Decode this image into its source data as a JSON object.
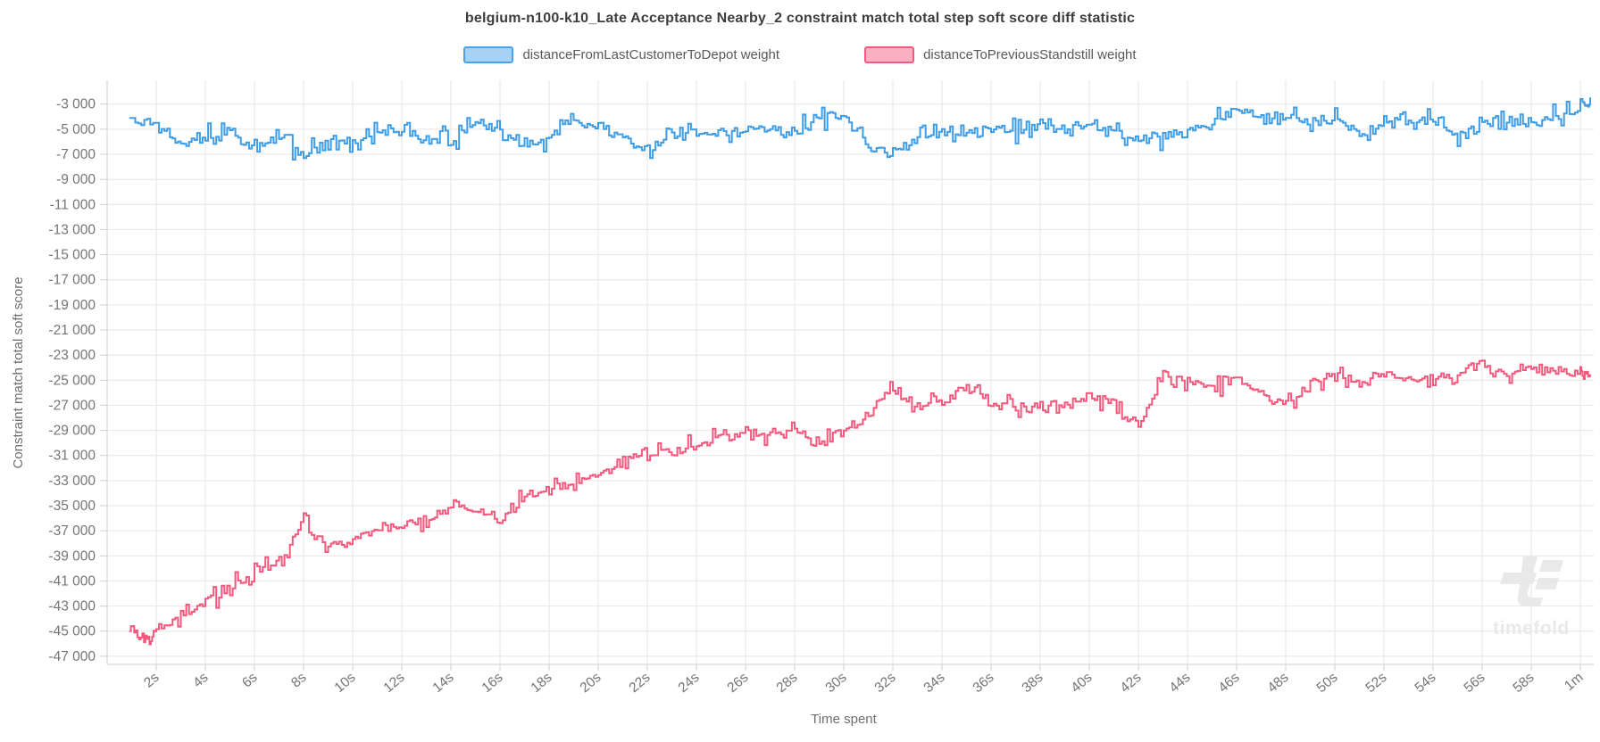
{
  "chart_title": "belgium-n100-k10_Late Acceptance Nearby_2 constraint match total step soft score diff statistic",
  "legend": {
    "items": [
      {
        "label": "distanceFromLastCustomerToDepot weight",
        "fill": "#a6d2f5",
        "border": "#4aa3ea"
      },
      {
        "label": "distanceToPreviousStandstill weight",
        "fill": "#f9b0c3",
        "border": "#f4587d"
      }
    ]
  },
  "axes": {
    "y_title": "Constraint match total soft score",
    "x_title": "Time spent"
  },
  "watermark": {
    "text": "timefold",
    "color": "#e9e9e9"
  },
  "colors": {
    "grid": "#e6e6e6",
    "axis": "#cfcfcf",
    "tick_label": "#757575",
    "series_blue": "#3e9de6",
    "series_pink": "#f4587d"
  },
  "chart_data": {
    "type": "line",
    "title": "belgium-n100-k10_Late Acceptance Nearby_2 constraint match total step soft score diff statistic",
    "xlabel": "Time spent",
    "ylabel": "Constraint match total soft score",
    "legend_position": "top",
    "grid": true,
    "xlim": [
      0,
      60
    ],
    "ylim": [
      -47650,
      -1100
    ],
    "x_tick_values": [
      2,
      4,
      6,
      8,
      10,
      12,
      14,
      16,
      18,
      20,
      22,
      24,
      26,
      28,
      30,
      32,
      34,
      36,
      38,
      40,
      42,
      44,
      46,
      48,
      50,
      52,
      54,
      56,
      58,
      60
    ],
    "x_tick_labels": [
      "2s",
      "4s",
      "6s",
      "8s",
      "10s",
      "12s",
      "14s",
      "16s",
      "18s",
      "20s",
      "22s",
      "24s",
      "26s",
      "28s",
      "30s",
      "32s",
      "34s",
      "36s",
      "38s",
      "40s",
      "42s",
      "44s",
      "46s",
      "48s",
      "50s",
      "52s",
      "54s",
      "56s",
      "58s",
      "1m"
    ],
    "y_tick_values": [
      -3000,
      -5000,
      -7000,
      -9000,
      -11000,
      -13000,
      -15000,
      -17000,
      -19000,
      -21000,
      -23000,
      -25000,
      -27000,
      -29000,
      -31000,
      -33000,
      -35000,
      -37000,
      -39000,
      -41000,
      -43000,
      -45000,
      -47000
    ],
    "y_tick_labels": [
      "-3 000",
      "-5 000",
      "-7 000",
      "-9 000",
      "-11 000",
      "-13 000",
      "-15 000",
      "-17 000",
      "-19 000",
      "-21 000",
      "-23 000",
      "-25 000",
      "-27 000",
      "-29 000",
      "-31 000",
      "-33 000",
      "-35 000",
      "-37 000",
      "-39 000",
      "-41 000",
      "-43 000",
      "-45 000",
      "-47 000"
    ],
    "series": [
      {
        "name": "distanceFromLastCustomerToDepot weight",
        "color": "#3e9de6",
        "noise_amplitude": 850,
        "x": [
          0.9,
          2,
          3,
          4,
          5,
          6,
          7,
          8,
          9,
          10,
          11,
          12,
          13,
          14,
          15,
          16,
          17,
          18,
          19,
          20,
          21,
          22,
          23,
          24,
          25,
          26,
          27,
          28,
          29,
          30,
          31,
          32,
          33,
          34,
          35,
          36,
          37,
          38,
          39,
          40,
          41,
          42,
          43,
          44,
          45,
          46,
          47,
          48,
          49,
          50,
          51,
          52,
          53,
          54,
          55,
          56,
          57,
          58,
          59,
          60,
          60.4
        ],
        "values": [
          -4100,
          -4600,
          -5900,
          -5400,
          -5300,
          -6600,
          -5500,
          -7200,
          -6000,
          -6300,
          -5300,
          -5100,
          -5600,
          -6000,
          -4600,
          -5000,
          -6400,
          -5500,
          -4300,
          -4900,
          -5600,
          -6900,
          -5400,
          -4800,
          -5300,
          -5200,
          -5000,
          -5400,
          -3800,
          -4200,
          -6300,
          -6900,
          -5500,
          -5200,
          -5500,
          -5000,
          -5300,
          -4800,
          -5100,
          -4600,
          -5100,
          -5900,
          -5700,
          -5200,
          -4600,
          -3600,
          -4100,
          -3900,
          -4500,
          -4200,
          -5300,
          -4700,
          -4400,
          -4300,
          -5400,
          -4500,
          -4200,
          -4500,
          -4000,
          -3400,
          -2700
        ]
      },
      {
        "name": "distanceToPreviousStandstill weight",
        "color": "#f4587d",
        "noise_amplitude": 750,
        "x": [
          0.9,
          1.5,
          2,
          3,
          4,
          5,
          6,
          7,
          8,
          9,
          10,
          11,
          12,
          13,
          14,
          15,
          16,
          17,
          18,
          19,
          20,
          21,
          22,
          23,
          24,
          25,
          26,
          27,
          28,
          29,
          30,
          31,
          32,
          33,
          34,
          35,
          36,
          37,
          38,
          39,
          40,
          41,
          42,
          43,
          44,
          45,
          46,
          47,
          48,
          49,
          50,
          51,
          52,
          53,
          54,
          55,
          56,
          57,
          58,
          59,
          60,
          60.4
        ],
        "values": [
          -45000,
          -45700,
          -45200,
          -43800,
          -42600,
          -41600,
          -40300,
          -39600,
          -36200,
          -38600,
          -37400,
          -36800,
          -36400,
          -36000,
          -34900,
          -35300,
          -36200,
          -34300,
          -33600,
          -33300,
          -32300,
          -31300,
          -30900,
          -30700,
          -30300,
          -29600,
          -29200,
          -29400,
          -28900,
          -29900,
          -29100,
          -27700,
          -25600,
          -27100,
          -26600,
          -25300,
          -26900,
          -27100,
          -27300,
          -26900,
          -26400,
          -26900,
          -28500,
          -24600,
          -25300,
          -25600,
          -24900,
          -26300,
          -27200,
          -25400,
          -24700,
          -25300,
          -24400,
          -25100,
          -24700,
          -24400,
          -23600,
          -24600,
          -24100,
          -24300,
          -24400,
          -24600
        ]
      }
    ],
    "render": {
      "seed": 13,
      "substeps": 9
    }
  }
}
